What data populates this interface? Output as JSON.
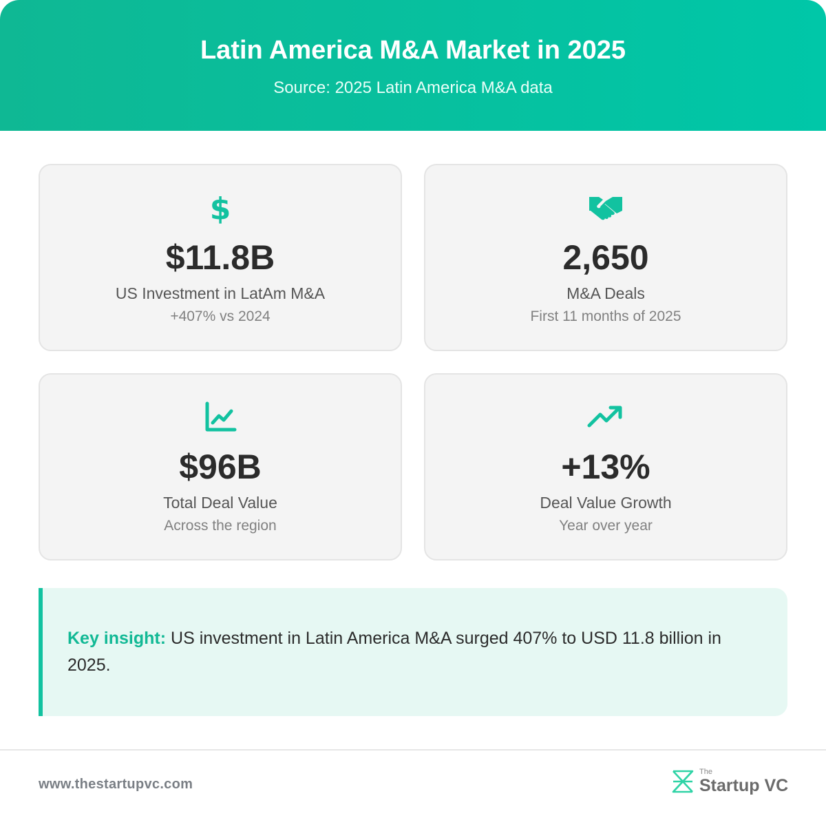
{
  "header": {
    "title": "Latin America M&A Market in 2025",
    "subtitle": "Source: 2025 Latin America M&A data"
  },
  "colors": {
    "accent": "#12c2a0",
    "header_start": "#0fb894",
    "header_end": "#00c7a8",
    "card_bg": "#f4f4f4",
    "insight_bg": "#e6f8f3"
  },
  "cards": [
    {
      "icon": "dollar-icon",
      "value": "$11.8B",
      "label": "US Investment in LatAm M&A",
      "sub": "+407% vs 2024"
    },
    {
      "icon": "handshake-icon",
      "value": "2,650",
      "label": "M&A Deals",
      "sub": "First 11 months of 2025"
    },
    {
      "icon": "line-chart-icon",
      "value": "$96B",
      "label": "Total Deal Value",
      "sub": "Across the region"
    },
    {
      "icon": "trending-up-icon",
      "value": "+13%",
      "label": "Deal Value Growth",
      "sub": "Year over year"
    }
  ],
  "insight": {
    "label": "Key insight:",
    "text": " US investment in Latin America M&A surged 407% to USD 11.8 billion in 2025."
  },
  "footer": {
    "url": "www.thestartupvc.com",
    "logo_small": "The",
    "logo_name": "Startup VC",
    "logo_icon": "startupvc-logo-icon"
  }
}
